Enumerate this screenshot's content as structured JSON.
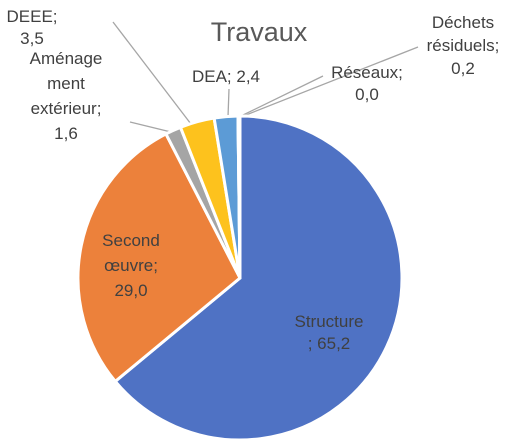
{
  "chart_data": {
    "type": "pie",
    "title": "Travaux",
    "slices": [
      {
        "label": "Structure",
        "value": 65.2,
        "value_text": "65,2",
        "color": "#4f72c4"
      },
      {
        "label": "Second œuvre",
        "value": 29.0,
        "value_text": "29,0",
        "color": "#ec813b"
      },
      {
        "label": "Aménagement extérieur",
        "value": 1.6,
        "value_text": "1,6",
        "color": "#a5a5a5"
      },
      {
        "label": "DEEE",
        "value": 3.5,
        "value_text": "3,5",
        "color": "#fdc21d"
      },
      {
        "label": "DEA",
        "value": 2.4,
        "value_text": "2,4",
        "color": "#5c9bd6"
      },
      {
        "label": "Réseaux",
        "value": 0.0,
        "value_text": "0,0",
        "color": "#71ad47"
      },
      {
        "label": "Déchets résiduels",
        "value": 0.2,
        "value_text": "0,2",
        "color": "#264478"
      }
    ],
    "data_labels": [
      {
        "lines": [
          "Structure",
          "; 65,2"
        ]
      },
      {
        "lines": [
          "Second",
          "œuvre;",
          "29,0"
        ]
      },
      {
        "lines": [
          "Aménage",
          "ment",
          "extérieur;",
          "1,6"
        ]
      },
      {
        "lines": [
          "DEEE;",
          "3,5"
        ]
      },
      {
        "lines": [
          "DEA; 2,4"
        ]
      },
      {
        "lines": [
          "Réseaux;",
          "0,0"
        ]
      },
      {
        "lines": [
          "Déchets",
          "résiduels;",
          "0,2"
        ]
      }
    ]
  }
}
